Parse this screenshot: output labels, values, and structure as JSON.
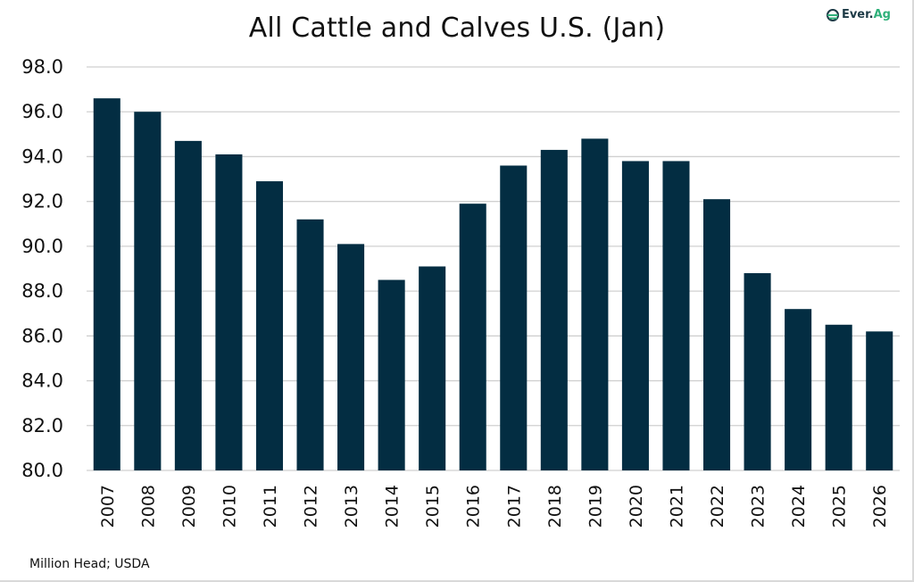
{
  "logo": {
    "mark": "ever-ag-logo",
    "text_main": "Ever.",
    "text_accent": "Ag"
  },
  "footer": {
    "note": "Million Head; USDA"
  },
  "colors": {
    "bar": "#032d42",
    "grid": "#d0d0d0",
    "logo_accent": "#2fb07a",
    "logo_dark": "#1d3a46"
  },
  "chart_data": {
    "type": "bar",
    "title": "All Cattle and Calves U.S. (Jan)",
    "xlabel": "",
    "ylabel": "",
    "unit_note": "Million Head; USDA",
    "categories": [
      "2007",
      "2008",
      "2009",
      "2010",
      "2011",
      "2012",
      "2013",
      "2014",
      "2015",
      "2016",
      "2017",
      "2018",
      "2019",
      "2020",
      "2021",
      "2022",
      "2023",
      "2024",
      "2025",
      "2026"
    ],
    "values": [
      96.6,
      96.0,
      94.7,
      94.1,
      92.9,
      91.2,
      90.1,
      88.5,
      89.1,
      91.9,
      93.6,
      94.3,
      94.8,
      93.8,
      93.8,
      92.1,
      88.8,
      87.2,
      86.5,
      86.2
    ],
    "ylim": [
      80,
      98
    ],
    "yticks": [
      80,
      82,
      84,
      86,
      88,
      90,
      92,
      94,
      96,
      98
    ],
    "ytick_format": "0.0",
    "grid": true,
    "legend": "none",
    "x_label_rotation": "vertical"
  }
}
